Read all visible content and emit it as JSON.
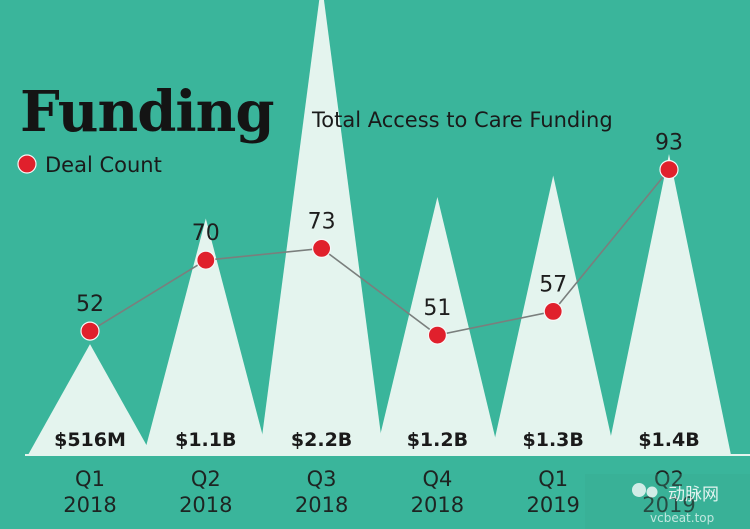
{
  "chart_data": {
    "type": "area",
    "title": "Funding",
    "subtitle": "Total Access to Care Funding",
    "legend": [
      {
        "label": "Deal Count",
        "color": "#e0202c",
        "marker": "circle"
      }
    ],
    "categories": [
      {
        "quarter": "Q1",
        "year": "2018"
      },
      {
        "quarter": "Q2",
        "year": "2018"
      },
      {
        "quarter": "Q3",
        "year": "2018"
      },
      {
        "quarter": "Q4",
        "year": "2018"
      },
      {
        "quarter": "Q1",
        "year": "2019"
      },
      {
        "quarter": "Q2",
        "year": "2019"
      }
    ],
    "series": [
      {
        "name": "Total Access to Care Funding",
        "kind": "triangle-area",
        "unit": "USD billions",
        "values": [
          0.516,
          1.1,
          2.2,
          1.2,
          1.3,
          1.4
        ],
        "labels": [
          "$516M",
          "$1.1B",
          "$2.2B",
          "$1.2B",
          "$1.3B",
          "$1.4B"
        ]
      },
      {
        "name": "Deal Count",
        "kind": "line",
        "values": [
          52,
          70,
          73,
          51,
          57,
          93
        ],
        "labels": [
          "52",
          "70",
          "73",
          "51",
          "57",
          "93"
        ]
      }
    ]
  },
  "watermark": {
    "brand": "动脉网",
    "site": "vcbeat.top"
  },
  "colors": {
    "background": "#3ab59b",
    "peak": "#e4f4ee",
    "dot": "#e0202c",
    "line": "#7a7f7d"
  }
}
